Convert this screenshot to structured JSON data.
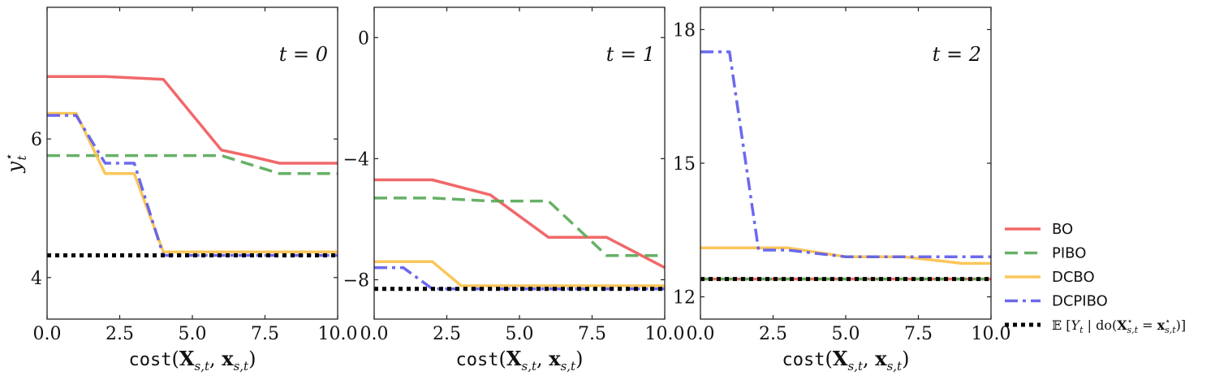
{
  "chart_data": [
    {
      "type": "line",
      "panel_label": "t = 0",
      "xlabel": "cost(X_{s,t}, x_{s,t})",
      "ylabel": "y*_t",
      "xlim": [
        0,
        10
      ],
      "ylim": [
        3.4,
        7.9
      ],
      "xticks": [
        0,
        2.5,
        5,
        7.5,
        10
      ],
      "xtick_labels": [
        "0.0",
        "2.5",
        "5.0",
        "7.5",
        "10.0"
      ],
      "yticks": [
        4,
        6
      ],
      "ytick_labels": [
        "4",
        "6"
      ],
      "series": [
        {
          "name": "BO",
          "x": [
            0,
            1,
            2,
            3,
            4,
            5,
            6,
            7,
            8,
            9,
            10
          ],
          "y": [
            6.9,
            6.9,
            6.9,
            6.88,
            6.86,
            6.35,
            5.84,
            5.75,
            5.65,
            5.65,
            5.65
          ]
        },
        {
          "name": "PIBO",
          "x": [
            0,
            6,
            8,
            10
          ],
          "y": [
            5.76,
            5.76,
            5.5,
            5.5
          ]
        },
        {
          "name": "DCBO",
          "x": [
            0,
            1,
            2,
            3,
            4,
            10
          ],
          "y": [
            6.37,
            6.37,
            5.5,
            5.5,
            4.37,
            4.37
          ]
        },
        {
          "name": "DCPIBO",
          "x": [
            0,
            1,
            2,
            3,
            4,
            10
          ],
          "y": [
            6.34,
            6.34,
            5.65,
            5.65,
            4.32,
            4.32
          ]
        },
        {
          "name": "E[Y_t | do(X*_{s,t} = x*_{s,t})]",
          "x": [
            0,
            10
          ],
          "y": [
            4.32,
            4.32
          ]
        }
      ]
    },
    {
      "type": "line",
      "panel_label": "t = 1",
      "xlabel": "cost(X_{s,t}, x_{s,t})",
      "ylabel": "",
      "xlim": [
        0,
        10
      ],
      "ylim": [
        -9.3,
        1.0
      ],
      "xticks": [
        0,
        2.5,
        5,
        7.5,
        10
      ],
      "xtick_labels": [
        "0.0",
        "2.5",
        "5.0",
        "7.5",
        "10.0"
      ],
      "yticks": [
        0,
        -4,
        -8
      ],
      "ytick_labels": [
        "0",
        "−4",
        "−8"
      ],
      "series": [
        {
          "name": "BO",
          "x": [
            0,
            2,
            4,
            6,
            7,
            8,
            10
          ],
          "y": [
            -4.7,
            -4.7,
            -5.2,
            -6.6,
            -6.6,
            -6.6,
            -7.6
          ]
        },
        {
          "name": "PIBO",
          "x": [
            0,
            2,
            4,
            6,
            8,
            10
          ],
          "y": [
            -5.3,
            -5.3,
            -5.4,
            -5.4,
            -7.2,
            -7.2
          ]
        },
        {
          "name": "DCBO",
          "x": [
            0,
            2,
            3,
            10
          ],
          "y": [
            -7.4,
            -7.4,
            -8.2,
            -8.2
          ]
        },
        {
          "name": "DCPIBO",
          "x": [
            0,
            1,
            2,
            10
          ],
          "y": [
            -7.6,
            -7.6,
            -8.3,
            -8.3
          ]
        },
        {
          "name": "E[Y_t | do(X*_{s,t} = x*_{s,t})]",
          "x": [
            0,
            10
          ],
          "y": [
            -8.3,
            -8.3
          ]
        }
      ]
    },
    {
      "type": "line",
      "panel_label": "t = 2",
      "xlabel": "cost(X_{s,t}, x_{s,t})",
      "ylabel": "",
      "xlim": [
        0,
        10
      ],
      "ylim": [
        11.5,
        18.5
      ],
      "xticks": [
        0,
        2.5,
        5,
        7.5,
        10
      ],
      "xtick_labels": [
        "0.0",
        "2.5",
        "5.0",
        "7.5",
        "10.0"
      ],
      "yticks": [
        12,
        15,
        18
      ],
      "ytick_labels": [
        "12",
        "15",
        "18"
      ],
      "series": [
        {
          "name": "BO",
          "x": [
            0,
            10
          ],
          "y": [
            12.4,
            12.4
          ]
        },
        {
          "name": "PIBO",
          "x": [
            0,
            10
          ],
          "y": [
            12.4,
            12.4
          ]
        },
        {
          "name": "DCBO",
          "x": [
            0,
            3,
            5,
            7,
            9,
            10
          ],
          "y": [
            13.1,
            13.1,
            12.9,
            12.9,
            12.75,
            12.75
          ]
        },
        {
          "name": "DCPIBO",
          "x": [
            0,
            1,
            2,
            3,
            5,
            10
          ],
          "y": [
            17.5,
            17.5,
            13.05,
            13.05,
            12.9,
            12.9
          ]
        },
        {
          "name": "E[Y_t | do(X*_{s,t} = x*_{s,t})]",
          "x": [
            0,
            10
          ],
          "y": [
            12.4,
            12.4
          ]
        }
      ]
    }
  ],
  "legend": {
    "placement": "right",
    "entries": [
      {
        "label": "BO",
        "color": "#f0585a",
        "style": "solid"
      },
      {
        "label": "PIBO",
        "color": "#55a855",
        "style": "dashed"
      },
      {
        "label": "DCBO",
        "color": "#fbc04a",
        "style": "solid"
      },
      {
        "label": "DCPIBO",
        "color": "#5b59ec",
        "style": "dashdot"
      },
      {
        "label": "E [Y_t | do(X*_{s,t} = x*_{s,t})]",
        "color": "#000000",
        "style": "dotted"
      }
    ]
  },
  "colors": {
    "BO": "#f0585a",
    "PIBO": "#55a855",
    "DCBO": "#fbc04a",
    "DCPIBO": "#5b59ec",
    "optimum": "#000000"
  }
}
